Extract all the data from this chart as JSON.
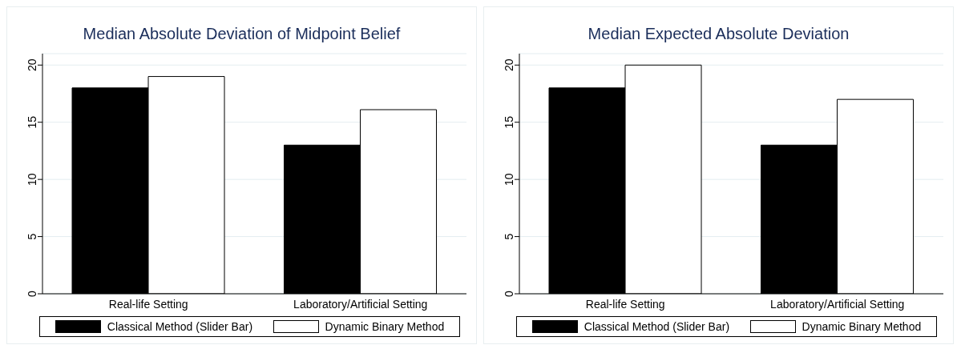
{
  "chart_data": [
    {
      "type": "bar",
      "title": "Median Absolute Deviation of Midpoint Belief",
      "categories": [
        "Real-life Setting",
        "Laboratory/Artificial Setting"
      ],
      "series": [
        {
          "name": "Classical Method (Slider Bar)",
          "color": "#000000",
          "values": [
            18,
            13
          ]
        },
        {
          "name": "Dynamic Binary Method",
          "color": "#ffffff",
          "values": [
            19,
            16.1
          ]
        }
      ],
      "ylim": [
        0,
        21
      ],
      "yticks": [
        0,
        5,
        10,
        15,
        20
      ],
      "grid": "y",
      "legend": "bottom"
    },
    {
      "type": "bar",
      "title": "Median Expected Absolute Deviation",
      "categories": [
        "Real-life Setting",
        "Laboratory/Artificial Setting"
      ],
      "series": [
        {
          "name": "Classical Method (Slider Bar)",
          "color": "#000000",
          "values": [
            18,
            13
          ]
        },
        {
          "name": "Dynamic Binary Method",
          "color": "#ffffff",
          "values": [
            20,
            17
          ]
        }
      ],
      "ylim": [
        0,
        21
      ],
      "yticks": [
        0,
        5,
        10,
        15,
        20
      ],
      "grid": "y",
      "legend": "bottom"
    }
  ]
}
